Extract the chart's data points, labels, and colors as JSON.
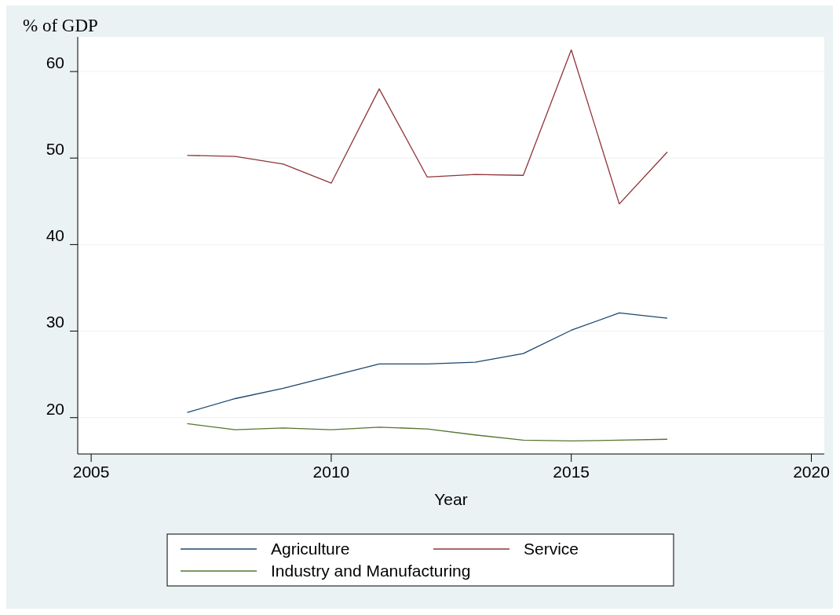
{
  "chart_data": {
    "type": "line",
    "ylabel": "% of GDP",
    "xlabel": "Year",
    "x": [
      2007,
      2008,
      2009,
      2010,
      2011,
      2012,
      2013,
      2014,
      2015,
      2016,
      2017
    ],
    "series": [
      {
        "name": "Agriculture",
        "color": "#1a476f",
        "values": [
          20.6,
          22.2,
          23.4,
          24.8,
          26.2,
          26.2,
          26.4,
          27.4,
          30.1,
          32.1,
          31.5
        ]
      },
      {
        "name": "Service",
        "color": "#90353b",
        "values": [
          50.3,
          50.2,
          49.3,
          47.1,
          58.0,
          47.8,
          48.1,
          48.0,
          62.5,
          44.7,
          50.7
        ]
      },
      {
        "name": "Industry and Manufacturing",
        "color": "#55752f",
        "values": [
          19.3,
          18.6,
          18.8,
          18.6,
          18.9,
          18.7,
          18.0,
          17.4,
          17.3,
          17.4,
          17.5
        ]
      }
    ],
    "xlim": [
      2004.72,
      2020.27
    ],
    "xticks": [
      2005,
      2010,
      2015,
      2020
    ],
    "ylim": [
      15.8,
      64
    ],
    "yticks": [
      20,
      30,
      40,
      50,
      60
    ],
    "grid": "y",
    "legend": "bottom",
    "marker": "none",
    "line_style": "solid"
  }
}
